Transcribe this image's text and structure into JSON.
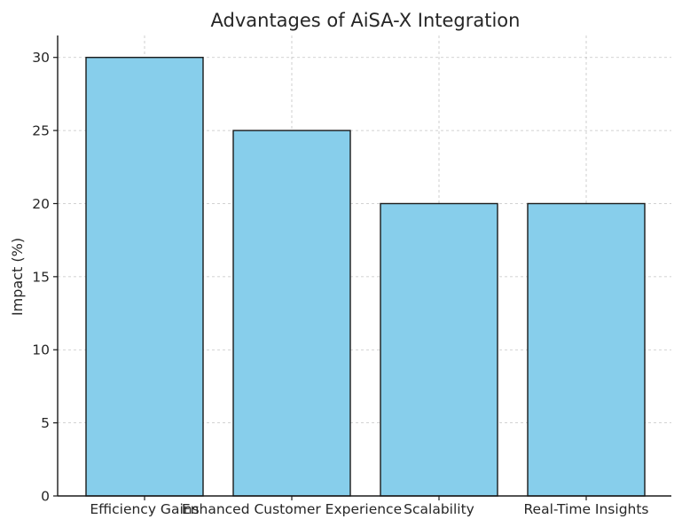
{
  "chart_data": {
    "type": "bar",
    "title": "Advantages of AiSA-X Integration",
    "xlabel": "",
    "ylabel": "Impact (%)",
    "categories": [
      "Efficiency Gains",
      "Enhanced Customer Experience",
      "Scalability",
      "Real-Time Insights"
    ],
    "values": [
      30,
      25,
      20,
      20
    ],
    "ylim": [
      0,
      31.5
    ],
    "yticks": [
      0,
      5,
      10,
      15,
      20,
      25,
      30
    ],
    "grid": true,
    "bar_color": "#87ceeb",
    "edge_color": "#1a1a1a"
  }
}
